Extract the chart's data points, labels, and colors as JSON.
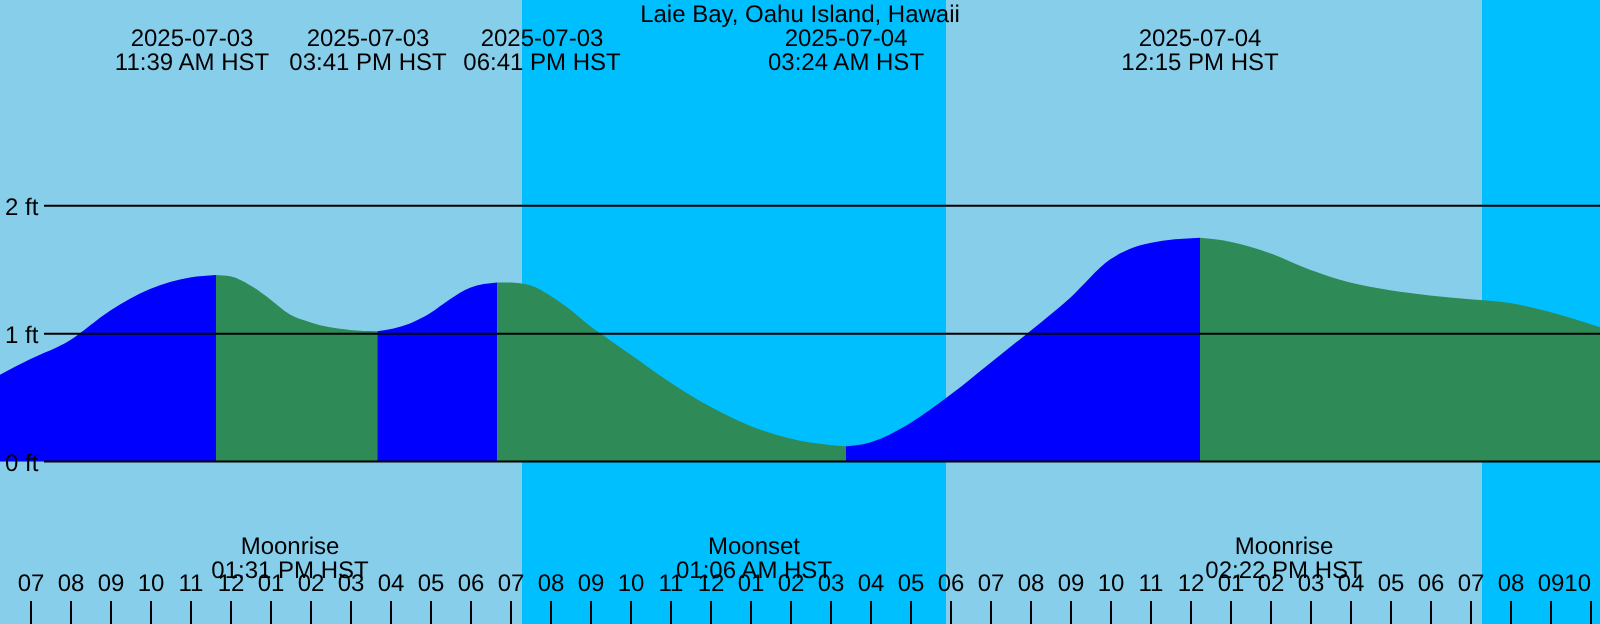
{
  "chart_data": {
    "type": "area",
    "title": "Laie Bay, Oahu Island, Hawaii",
    "xlim": [
      "2025-07-03T06:15",
      "2025-07-04T22:15"
    ],
    "ylim": [
      -1.27,
      3.61
    ],
    "yticks": [
      {
        "value": 2,
        "label": "2 ft"
      },
      {
        "value": 1,
        "label": "1 ft"
      },
      {
        "value": 0,
        "label": "0 ft"
      }
    ],
    "xticks": [
      {
        "value": "2025-07-03T07:00",
        "label": "07"
      },
      {
        "value": "2025-07-03T08:00",
        "label": "08"
      },
      {
        "value": "2025-07-03T09:00",
        "label": "09"
      },
      {
        "value": "2025-07-03T10:00",
        "label": "10"
      },
      {
        "value": "2025-07-03T11:00",
        "label": "11"
      },
      {
        "value": "2025-07-03T12:00",
        "label": "12"
      },
      {
        "value": "2025-07-03T13:00",
        "label": "01"
      },
      {
        "value": "2025-07-03T14:00",
        "label": "02"
      },
      {
        "value": "2025-07-03T15:00",
        "label": "03"
      },
      {
        "value": "2025-07-03T16:00",
        "label": "04"
      },
      {
        "value": "2025-07-03T17:00",
        "label": "05"
      },
      {
        "value": "2025-07-03T18:00",
        "label": "06"
      },
      {
        "value": "2025-07-03T19:00",
        "label": "07"
      },
      {
        "value": "2025-07-03T20:00",
        "label": "08"
      },
      {
        "value": "2025-07-03T21:00",
        "label": "09"
      },
      {
        "value": "2025-07-03T22:00",
        "label": "10"
      },
      {
        "value": "2025-07-03T23:00",
        "label": "11"
      },
      {
        "value": "2025-07-04T00:00",
        "label": "12"
      },
      {
        "value": "2025-07-04T01:00",
        "label": "01"
      },
      {
        "value": "2025-07-04T02:00",
        "label": "02"
      },
      {
        "value": "2025-07-04T03:00",
        "label": "03"
      },
      {
        "value": "2025-07-04T04:00",
        "label": "04"
      },
      {
        "value": "2025-07-04T05:00",
        "label": "05"
      },
      {
        "value": "2025-07-04T06:00",
        "label": "06"
      },
      {
        "value": "2025-07-04T07:00",
        "label": "07"
      },
      {
        "value": "2025-07-04T08:00",
        "label": "08"
      },
      {
        "value": "2025-07-04T09:00",
        "label": "09"
      },
      {
        "value": "2025-07-04T10:00",
        "label": "10"
      },
      {
        "value": "2025-07-04T11:00",
        "label": "11"
      },
      {
        "value": "2025-07-04T12:00",
        "label": "12"
      },
      {
        "value": "2025-07-04T13:00",
        "label": "01"
      },
      {
        "value": "2025-07-04T14:00",
        "label": "02"
      },
      {
        "value": "2025-07-04T15:00",
        "label": "03"
      },
      {
        "value": "2025-07-04T16:00",
        "label": "04"
      },
      {
        "value": "2025-07-04T17:00",
        "label": "05"
      },
      {
        "value": "2025-07-04T18:00",
        "label": "06"
      },
      {
        "value": "2025-07-04T19:00",
        "label": "07"
      },
      {
        "value": "2025-07-04T20:00",
        "label": "08"
      },
      {
        "value": "2025-07-04T21:00",
        "label": "09"
      },
      {
        "value": "2025-07-04T22:00",
        "label": "10"
      }
    ],
    "grid": "y",
    "bands": [
      {
        "axis": "x",
        "from": "2025-07-03T06:15",
        "to": "2025-07-03T19:18",
        "color": "#87ceeb"
      },
      {
        "axis": "x",
        "from": "2025-07-03T19:18",
        "to": "2025-07-04T05:54",
        "color": "#00bfff"
      },
      {
        "axis": "x",
        "from": "2025-07-04T05:54",
        "to": "2025-07-04T19:18",
        "color": "#87ceeb"
      },
      {
        "axis": "x",
        "from": "2025-07-04T19:18",
        "to": "2025-07-04T22:15",
        "color": "#00bfff"
      }
    ],
    "series": [
      {
        "color": "#0000ff",
        "x": [
          "2025-07-03T06:15",
          "2025-07-03T07:00",
          "2025-07-03T08:00",
          "2025-07-03T09:00",
          "2025-07-03T10:00",
          "2025-07-03T11:00",
          "2025-07-03T11:39"
        ],
        "values": [
          0.68,
          0.8,
          0.95,
          1.18,
          1.35,
          1.44,
          1.46
        ]
      },
      {
        "color": "#2e8b57",
        "x": [
          "2025-07-03T11:39",
          "2025-07-03T12:00",
          "2025-07-03T12:30",
          "2025-07-03T13:00",
          "2025-07-03T13:30",
          "2025-07-03T14:00",
          "2025-07-03T14:30",
          "2025-07-03T15:00",
          "2025-07-03T15:41"
        ],
        "values": [
          1.46,
          1.45,
          1.38,
          1.27,
          1.15,
          1.09,
          1.05,
          1.03,
          1.02
        ]
      },
      {
        "color": "#0000ff",
        "x": [
          "2025-07-03T15:41",
          "2025-07-03T16:30",
          "2025-07-03T17:00",
          "2025-07-03T17:30",
          "2025-07-03T18:00",
          "2025-07-03T18:41"
        ],
        "values": [
          1.02,
          1.08,
          1.16,
          1.27,
          1.36,
          1.4
        ]
      },
      {
        "color": "#2e8b57",
        "x": [
          "2025-07-03T18:41",
          "2025-07-03T19:00",
          "2025-07-03T19:30",
          "2025-07-03T20:00",
          "2025-07-03T20:30",
          "2025-07-03T21:00",
          "2025-07-03T21:30",
          "2025-07-03T22:00",
          "2025-07-03T23:00",
          "2025-07-04T00:00",
          "2025-07-04T01:00",
          "2025-07-04T02:00",
          "2025-07-04T03:00",
          "2025-07-04T03:24"
        ],
        "values": [
          1.4,
          1.4,
          1.38,
          1.3,
          1.19,
          1.06,
          0.95,
          0.84,
          0.62,
          0.43,
          0.28,
          0.18,
          0.13,
          0.12
        ]
      },
      {
        "color": "#0000ff",
        "x": [
          "2025-07-04T03:24",
          "2025-07-04T04:00",
          "2025-07-04T05:00",
          "2025-07-04T06:00",
          "2025-07-04T07:00",
          "2025-07-04T08:00",
          "2025-07-04T09:00",
          "2025-07-04T10:00",
          "2025-07-04T11:00",
          "2025-07-04T12:15"
        ],
        "values": [
          0.12,
          0.15,
          0.3,
          0.52,
          0.77,
          1.02,
          1.28,
          1.58,
          1.71,
          1.75
        ]
      },
      {
        "color": "#2e8b57",
        "x": [
          "2025-07-04T12:15",
          "2025-07-04T13:00",
          "2025-07-04T14:00",
          "2025-07-04T15:00",
          "2025-07-04T16:00",
          "2025-07-04T17:00",
          "2025-07-04T18:00",
          "2025-07-04T19:00",
          "2025-07-04T20:00",
          "2025-07-04T21:00",
          "2025-07-04T22:15"
        ],
        "values": [
          1.75,
          1.72,
          1.63,
          1.5,
          1.4,
          1.34,
          1.3,
          1.27,
          1.24,
          1.17,
          1.05
        ]
      }
    ],
    "annotations": [
      "2025-07-03\n11:39 AM HST",
      "2025-07-03\n03:41 PM HST",
      "2025-07-03\n06:41 PM HST",
      "2025-07-04\n03:24 AM HST",
      "2025-07-04\n12:15 PM HST",
      "Moonrise\n01:31 PM HST",
      "Moonset\n01:06 AM HST",
      "Moonrise\n02:22 PM HST"
    ]
  }
}
